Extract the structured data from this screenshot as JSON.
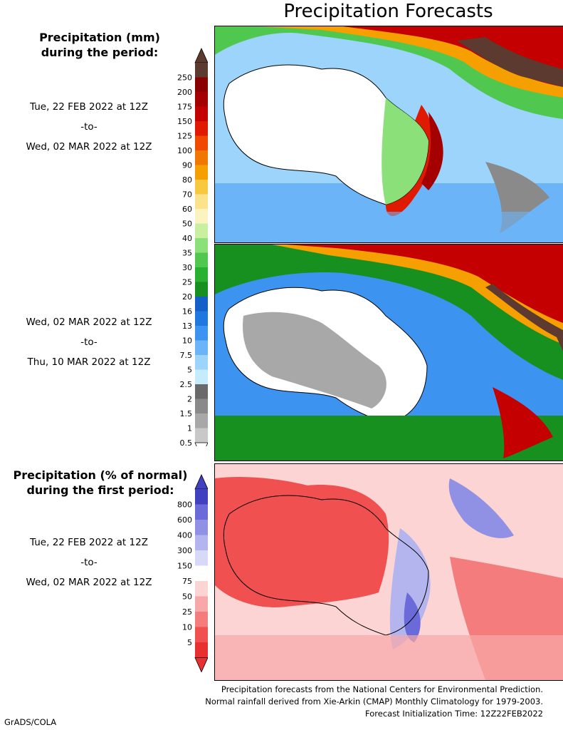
{
  "title": "Precipitation Forecasts",
  "panel1": {
    "heading_line1": "Precipitation (mm)",
    "heading_line2": "during the period:",
    "period_start": "Tue, 22 FEB 2022 at 12Z",
    "to": "-to-",
    "period_end": "Wed, 02 MAR 2022 at 12Z"
  },
  "panel2": {
    "period_start": "Wed, 02 MAR 2022 at 12Z",
    "to": "-to-",
    "period_end": "Thu, 10 MAR 2022 at 12Z"
  },
  "panel3": {
    "heading_line1": "Precipitation (% of normal)",
    "heading_line2": "during the first period:",
    "period_start": "Tue, 22 FEB 2022 at 12Z",
    "to": "-to-",
    "period_end": "Wed, 02 MAR 2022 at 12Z"
  },
  "precip_legend": {
    "labels": [
      "250",
      "200",
      "175",
      "150",
      "125",
      "100",
      "90",
      "80",
      "70",
      "60",
      "50",
      "40",
      "35",
      "30",
      "25",
      "20",
      "16",
      "13",
      "10",
      "7.5",
      "5",
      "2.5",
      "2",
      "1.5",
      "1",
      "0.5"
    ],
    "colors": [
      "#5c3a30",
      "#8a0000",
      "#a50000",
      "#c40000",
      "#e01a00",
      "#f04a00",
      "#f07800",
      "#f5a000",
      "#f8c840",
      "#fae38a",
      "#fcf4c0",
      "#c8f0a0",
      "#8ce07a",
      "#50c850",
      "#28b030",
      "#189020",
      "#1460c8",
      "#1e78e0",
      "#3c94f0",
      "#6cb4f8",
      "#9cd4fc",
      "#c4ecfc",
      "#6a6a6a",
      "#8a8a8a",
      "#a8a8a8",
      "#c8c8c8"
    ]
  },
  "pct_legend": {
    "labels": [
      "800",
      "600",
      "400",
      "300",
      "150",
      "75",
      "50",
      "25",
      "10",
      "5"
    ],
    "colors": [
      "#4040c0",
      "#6a6ad8",
      "#9090e4",
      "#b4b4ee",
      "#d8d8f8",
      "#ffffff",
      "#fcd4d4",
      "#f8a8a8",
      "#f47c7c",
      "#f05050",
      "#e83030"
    ]
  },
  "footer": {
    "line1": "Precipitation forecasts from the National Centers for Environmental Prediction.",
    "line2": "Normal rainfall derived from Xie-Arkin (CMAP) Monthly Climatology for 1979-2003.",
    "line3": "Forecast Initialization Time: 12Z22FEB2022"
  },
  "credit": "GrADS/COLA"
}
